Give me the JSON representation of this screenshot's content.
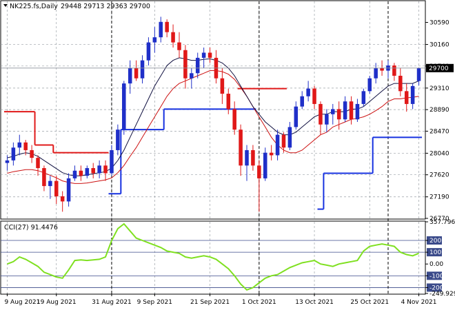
{
  "header": {
    "symbol": "NK225.fs,Daily",
    "ohlc": "29448 29713 29363 29700"
  },
  "cci_header": {
    "label": "CCI(27) 91.4476"
  },
  "colors": {
    "bull_candle": "#1f2fc8",
    "bear_candle": "#e01818",
    "fast_ma": "#101040",
    "slow_ma": "#cc1010",
    "stop_red": "#e01818",
    "stop_blue": "#1530e0",
    "cci_line": "#7fe020",
    "level_line": "#3a4a8a",
    "grid": "#9aa0a6",
    "vertical_marker": "#000000"
  },
  "chart_data": [
    {
      "type": "candlestick",
      "title": "NK225.fs,Daily",
      "ylim": [
        26770,
        31000
      ],
      "grid": true,
      "y_ticks": [
        "30590",
        "30160",
        "29740",
        "29310",
        "28890",
        "28470",
        "28040",
        "27620",
        "27190",
        "26770"
      ],
      "current_price_label": "29700",
      "current_price": 29700,
      "x_tick_labels": [
        "9 Aug 2021",
        "19 Aug 2021",
        "31 Aug 2021",
        "9 Sep 2021",
        "21 Sep 2021",
        "1 Oct 2021",
        "13 Oct 2021",
        "25 Oct 2021",
        "4 Nov 2021"
      ],
      "x_tick_index": [
        0,
        8,
        17,
        24,
        33,
        41,
        50,
        59,
        67
      ],
      "vertical_marker_index": [
        17,
        41,
        62
      ],
      "series": [
        {
          "kind": "ohlc",
          "values": [
            [
              27850,
              28000,
              27700,
              27900
            ],
            [
              27900,
              28250,
              27800,
              28150
            ],
            [
              28150,
              28400,
              28000,
              28250
            ],
            [
              28250,
              28300,
              28000,
              28100
            ],
            [
              28100,
              28200,
              27850,
              27950
            ],
            [
              27950,
              28000,
              27600,
              27750
            ],
            [
              27750,
              27800,
              27300,
              27400
            ],
            [
              27400,
              27600,
              27150,
              27500
            ],
            [
              27500,
              27600,
              27050,
              27200
            ],
            [
              27200,
              27300,
              26900,
              27100
            ],
            [
              27100,
              27650,
              27000,
              27550
            ],
            [
              27550,
              27800,
              27500,
              27700
            ],
            [
              27700,
              27800,
              27500,
              27600
            ],
            [
              27600,
              27800,
              27550,
              27750
            ],
            [
              27750,
              27850,
              27550,
              27650
            ],
            [
              27650,
              27900,
              27550,
              27800
            ],
            [
              27800,
              27900,
              27500,
              27650
            ],
            [
              27650,
              28200,
              27600,
              28100
            ],
            [
              28100,
              28600,
              28000,
              28500
            ],
            [
              28500,
              29450,
              28400,
              29400
            ],
            [
              29400,
              29850,
              29200,
              29700
            ],
            [
              29700,
              29850,
              29450,
              29500
            ],
            [
              29500,
              29950,
              29400,
              29850
            ],
            [
              29850,
              30300,
              29750,
              30200
            ],
            [
              30200,
              30500,
              30000,
              30300
            ],
            [
              30300,
              30700,
              30200,
              30600
            ],
            [
              30600,
              30650,
              30300,
              30400
            ],
            [
              30400,
              30550,
              30100,
              30200
            ],
            [
              30200,
              30400,
              29900,
              30050
            ],
            [
              30050,
              30150,
              29300,
              29500
            ],
            [
              29500,
              29700,
              29300,
              29600
            ],
            [
              29600,
              30000,
              29500,
              29900
            ],
            [
              29900,
              30100,
              29700,
              30000
            ],
            [
              30000,
              30100,
              29800,
              29900
            ],
            [
              29900,
              30050,
              29400,
              29500
            ],
            [
              29500,
              29700,
              29000,
              29200
            ],
            [
              29200,
              29300,
              28800,
              28900
            ],
            [
              28900,
              29050,
              28400,
              28500
            ],
            [
              28500,
              28600,
              27600,
              27800
            ],
            [
              27800,
              28200,
              27500,
              28100
            ],
            [
              28100,
              28200,
              27700,
              27800
            ],
            [
              27800,
              27900,
              26900,
              27550
            ],
            [
              27550,
              28150,
              27500,
              28050
            ],
            [
              28050,
              28200,
              27900,
              28000
            ],
            [
              28000,
              28500,
              27900,
              28400
            ],
            [
              28400,
              28450,
              28050,
              28150
            ],
            [
              28150,
              28650,
              28100,
              28550
            ],
            [
              28550,
              29050,
              28500,
              28950
            ],
            [
              28950,
              29250,
              28900,
              29150
            ],
            [
              29150,
              29450,
              29050,
              29300
            ],
            [
              29300,
              29350,
              28900,
              29000
            ],
            [
              29000,
              29050,
              28400,
              28600
            ],
            [
              28600,
              28900,
              28450,
              28800
            ],
            [
              28800,
              29000,
              28600,
              28900
            ],
            [
              28900,
              29050,
              28500,
              28700
            ],
            [
              28700,
              29150,
              28650,
              29050
            ],
            [
              29050,
              29150,
              28600,
              28700
            ],
            [
              28700,
              29100,
              28650,
              29000
            ],
            [
              29000,
              29300,
              28950,
              29250
            ],
            [
              29250,
              29550,
              29200,
              29500
            ],
            [
              29500,
              29800,
              29400,
              29700
            ],
            [
              29700,
              29850,
              29550,
              29650
            ],
            [
              29650,
              29850,
              29500,
              29750
            ],
            [
              29750,
              29800,
              29450,
              29550
            ],
            [
              29550,
              29700,
              29150,
              29250
            ],
            [
              29250,
              29400,
              28850,
              29000
            ],
            [
              29000,
              29400,
              28900,
              29350
            ],
            [
              29448,
              29713,
              29363,
              29700
            ]
          ]
        },
        {
          "kind": "moving_average_fast",
          "values": [
            27950,
            27980,
            28020,
            28050,
            28030,
            27980,
            27900,
            27820,
            27740,
            27660,
            27620,
            27600,
            27600,
            27620,
            27640,
            27660,
            27680,
            27750,
            27900,
            28100,
            28350,
            28600,
            28850,
            29100,
            29350,
            29550,
            29750,
            29850,
            29900,
            29880,
            29850,
            29850,
            29870,
            29880,
            29850,
            29800,
            29700,
            29550,
            29350,
            29150,
            28950,
            28800,
            28650,
            28550,
            28450,
            28400,
            28400,
            28450,
            28550,
            28650,
            28750,
            28800,
            28800,
            28850,
            28850,
            28850,
            28900,
            28900,
            28950,
            29050,
            29150,
            29250,
            29350,
            29400,
            29400,
            29400,
            29400,
            29450
          ]
        },
        {
          "kind": "moving_average_slow",
          "values": [
            27650,
            27680,
            27700,
            27720,
            27720,
            27700,
            27660,
            27610,
            27560,
            27500,
            27470,
            27450,
            27450,
            27460,
            27480,
            27500,
            27520,
            27560,
            27660,
            27800,
            27980,
            28150,
            28350,
            28550,
            28750,
            28950,
            29150,
            29300,
            29400,
            29450,
            29500,
            29550,
            29600,
            29650,
            29650,
            29630,
            29580,
            29480,
            29320,
            29150,
            28950,
            28750,
            28550,
            28350,
            28200,
            28100,
            28050,
            28050,
            28100,
            28200,
            28300,
            28400,
            28450,
            28550,
            28600,
            28650,
            28700,
            28720,
            28750,
            28800,
            28870,
            28950,
            29050,
            29100,
            29100,
            29120,
            29130,
            29150
          ]
        },
        {
          "kind": "stop_level_red",
          "segments": [
            [
              0,
              5,
              28850
            ],
            [
              5,
              8,
              28200
            ],
            [
              8,
              17,
              28050
            ],
            [
              38,
              46,
              29300
            ]
          ]
        },
        {
          "kind": "stop_level_blue",
          "segments": [
            [
              17,
              19,
              27250
            ],
            [
              19,
              26,
              28500
            ],
            [
              26,
              41,
              28900
            ],
            [
              51,
              52,
              26950
            ],
            [
              52,
              60,
              27650
            ],
            [
              60,
              68,
              28350
            ]
          ]
        }
      ]
    },
    {
      "type": "line",
      "title": "CCI(27) 91.4476",
      "ylim": [
        -249.929,
        357.796
      ],
      "y_ticks": [
        "357.796",
        "200",
        "100",
        "0.00",
        "-100",
        "-200",
        "-249.929"
      ],
      "levels": [
        200,
        100,
        -100,
        -200
      ],
      "series": [
        {
          "name": "CCI(27)",
          "values": [
            0,
            20,
            60,
            40,
            10,
            -20,
            -70,
            -90,
            -110,
            -120,
            -50,
            30,
            35,
            30,
            35,
            40,
            60,
            200,
            300,
            340,
            280,
            220,
            200,
            180,
            160,
            140,
            110,
            100,
            90,
            60,
            50,
            60,
            70,
            60,
            40,
            0,
            -40,
            -100,
            -170,
            -220,
            -200,
            -160,
            -120,
            -100,
            -90,
            -60,
            -30,
            -10,
            10,
            20,
            30,
            0,
            -10,
            -20,
            0,
            10,
            20,
            30,
            110,
            150,
            160,
            170,
            160,
            150,
            100,
            80,
            70,
            91
          ]
        }
      ]
    }
  ]
}
